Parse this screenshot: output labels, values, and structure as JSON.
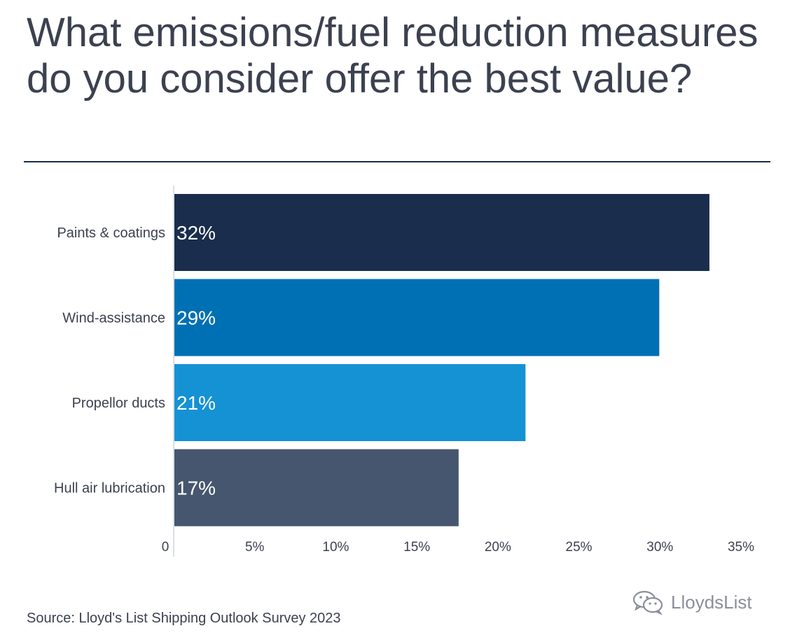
{
  "title": "What emissions/fuel reduction measures do you consider offer the best value?",
  "source": "Source: Lloyd's List Shipping Outlook Survey 2023",
  "watermark": "LloydsList",
  "watermark_icon": "wechat-icon",
  "colors": {
    "title_text": "#3c4150",
    "rule": "#1b2a4a",
    "axis_text": "#3c4150",
    "axis_line": "#cfd3da"
  },
  "chart_data": {
    "type": "bar",
    "orientation": "horizontal",
    "categories": [
      "Paints & coatings",
      "Wind-assistance",
      "Propellor ducts",
      "Hull air lubrication"
    ],
    "values": [
      32,
      29,
      21,
      17
    ],
    "value_labels": [
      "32%",
      "29%",
      "21%",
      "17%"
    ],
    "bar_colors": [
      "#1b2d4c",
      "#0070b4",
      "#1592d4",
      "#46566f"
    ],
    "xlim": [
      0,
      35
    ],
    "x_ticks": [
      0,
      5,
      10,
      15,
      20,
      25,
      30,
      35
    ],
    "x_tick_labels": [
      "0",
      "5%",
      "10%",
      "15%",
      "20%",
      "25%",
      "30%",
      "35%"
    ],
    "grid": false,
    "legend": "none"
  }
}
